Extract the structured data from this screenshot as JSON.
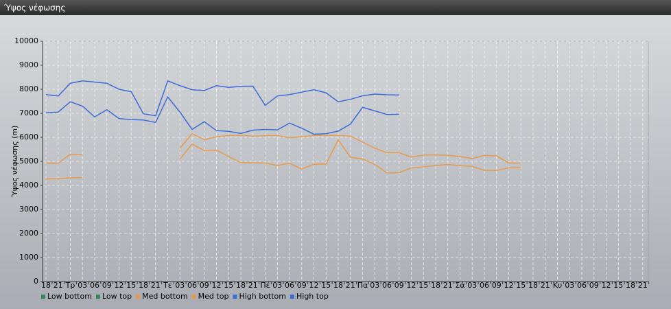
{
  "chart_data": {
    "type": "line",
    "title": "Ύψος νέφωσης",
    "y_label": "Ύψος νέφωσης (m)",
    "categories": [
      "18",
      "21",
      "Τρ",
      "03",
      "06",
      "09",
      "12",
      "15",
      "18",
      "21",
      "Τε",
      "03",
      "06",
      "09",
      "12",
      "15",
      "18",
      "21",
      "Πέ",
      "03",
      "06",
      "09",
      "12",
      "15",
      "18",
      "21",
      "Πα",
      "03",
      "06",
      "09",
      "12",
      "15",
      "18",
      "21",
      "Σά",
      "03",
      "06",
      "09",
      "12",
      "15",
      "18",
      "21",
      "Κυ",
      "03",
      "06",
      "09",
      "12",
      "15",
      "18",
      "21"
    ],
    "ylim": [
      0,
      10000
    ],
    "yticks": [
      0,
      1000,
      2000,
      3000,
      4000,
      5000,
      6000,
      7000,
      8000,
      9000,
      10000
    ],
    "grid": true,
    "legend": "bottom",
    "series": [
      {
        "name": "Low bottom",
        "color": "#2e8b57",
        "values": [
          null,
          null,
          null,
          null,
          null,
          null,
          null,
          null,
          null,
          null,
          null,
          null,
          null,
          null,
          null,
          null,
          null,
          null,
          null,
          null,
          null,
          null,
          null,
          null,
          null,
          null,
          null,
          null,
          null,
          null,
          null,
          null,
          null,
          null,
          null,
          null,
          null,
          null,
          null,
          null,
          null,
          null,
          null,
          null,
          null,
          null,
          null,
          null,
          null,
          null
        ]
      },
      {
        "name": "Low top",
        "color": "#2e8b57",
        "values": [
          null,
          null,
          null,
          null,
          null,
          null,
          null,
          null,
          null,
          null,
          null,
          null,
          null,
          null,
          null,
          null,
          null,
          null,
          null,
          null,
          null,
          null,
          null,
          null,
          null,
          null,
          null,
          null,
          null,
          null,
          null,
          null,
          null,
          null,
          null,
          null,
          null,
          null,
          null,
          null,
          null,
          null,
          null,
          null,
          null,
          null,
          null,
          null,
          null,
          null
        ]
      },
      {
        "name": "Med bottom",
        "color": "#e89a4a",
        "values": [
          4270,
          4280,
          4310,
          4320,
          null,
          null,
          null,
          null,
          null,
          null,
          null,
          5100,
          5720,
          5450,
          5470,
          5200,
          4950,
          4940,
          4930,
          4830,
          4920,
          4680,
          4880,
          4890,
          5900,
          5170,
          5100,
          4870,
          4520,
          4530,
          4730,
          4770,
          4830,
          4870,
          4820,
          4790,
          4630,
          4620,
          4730,
          4730,
          null,
          null,
          null,
          null,
          null,
          null,
          null,
          null,
          null,
          null
        ]
      },
      {
        "name": "Med top",
        "color": "#e89a4a",
        "values": [
          4930,
          4920,
          5300,
          5280,
          null,
          null,
          null,
          null,
          null,
          null,
          null,
          5550,
          6150,
          5900,
          6020,
          6080,
          6080,
          6050,
          6070,
          6080,
          5980,
          6030,
          6080,
          6080,
          6080,
          6050,
          5800,
          5550,
          5360,
          5360,
          5180,
          5260,
          5270,
          5250,
          5200,
          5120,
          5250,
          5230,
          4930,
          4930,
          null,
          null,
          null,
          null,
          null,
          null,
          null,
          null,
          null,
          null
        ]
      },
      {
        "name": "High bottom",
        "color": "#3b6bd6",
        "values": [
          7020,
          7050,
          7480,
          7300,
          6850,
          7150,
          6780,
          6740,
          6720,
          6620,
          7680,
          7050,
          6330,
          6650,
          6280,
          6250,
          6160,
          6300,
          6330,
          6310,
          6590,
          6380,
          6130,
          6150,
          6260,
          6550,
          7250,
          7100,
          6950,
          6960,
          null,
          null,
          null,
          null,
          null,
          null,
          null,
          null,
          null,
          null,
          null,
          null,
          null,
          null,
          null,
          null,
          null,
          null,
          null,
          null
        ]
      },
      {
        "name": "High top",
        "color": "#3b6bd6",
        "values": [
          7780,
          7720,
          8250,
          8350,
          8300,
          8250,
          8000,
          7900,
          6980,
          6900,
          8350,
          8150,
          7980,
          7950,
          8150,
          8080,
          8120,
          8130,
          7330,
          7720,
          7780,
          7880,
          7980,
          7850,
          7480,
          7580,
          7730,
          7800,
          7770,
          7760,
          null,
          null,
          null,
          null,
          null,
          null,
          null,
          null,
          null,
          null,
          null,
          null,
          null,
          null,
          null,
          null,
          null,
          null,
          null,
          null
        ]
      }
    ]
  }
}
